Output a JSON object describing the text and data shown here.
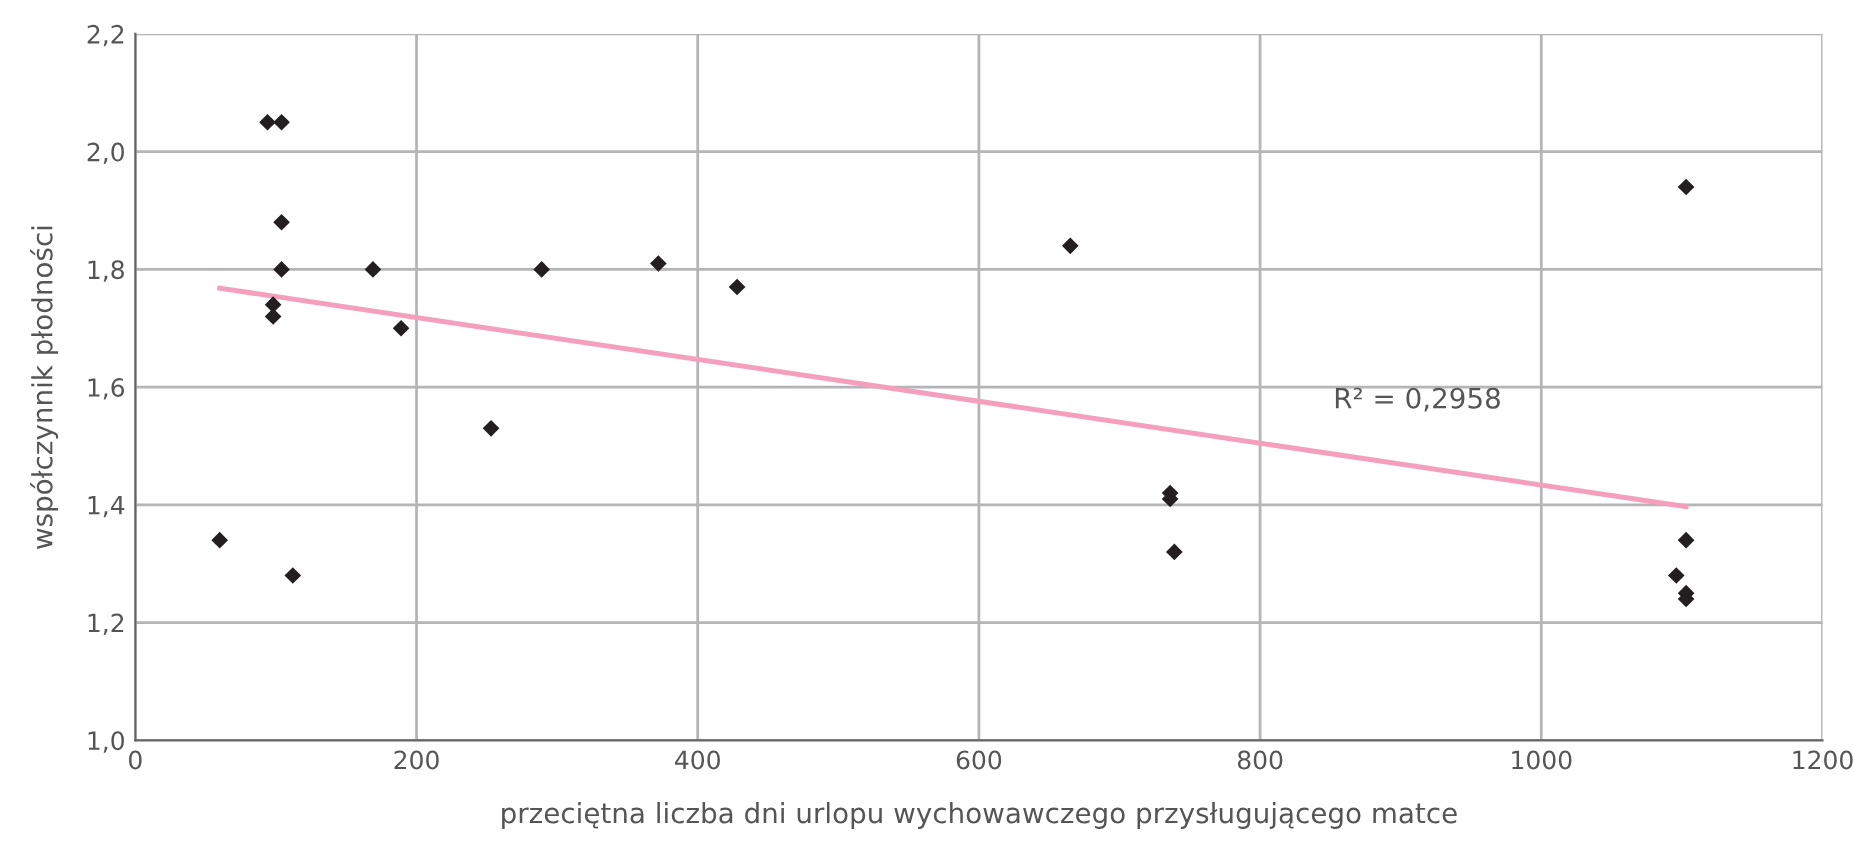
{
  "chart_data": {
    "type": "scatter",
    "xlabel": "przeciętna liczba dni urlopu wychowawczego przysługującego matce",
    "ylabel": "współczynnik płodności",
    "series": [
      {
        "color": "#231f20",
        "marker": "diamond",
        "x": [
          94,
          104,
          104,
          104,
          98,
          98,
          169,
          189,
          253,
          60,
          112,
          289,
          372,
          428,
          665,
          736,
          736,
          739,
          1103,
          1103,
          1096,
          1103,
          1103
        ],
        "values": [
          2.05,
          2.05,
          1.88,
          1.8,
          1.74,
          1.72,
          1.8,
          1.7,
          1.53,
          1.34,
          1.28,
          1.8,
          1.81,
          1.77,
          1.84,
          1.42,
          1.41,
          1.32,
          1.94,
          1.34,
          1.28,
          1.25,
          1.24
        ]
      },
      {
        "type": "line",
        "color": "#f4a0bc",
        "marker": "none",
        "x": [
          60,
          1103
        ],
        "values": [
          1.768,
          1.397
        ]
      }
    ],
    "annotations": [
      "R² = 0,2958"
    ],
    "xlim": [
      0,
      1200
    ],
    "xticks": [
      0,
      200,
      400,
      600,
      800,
      1000,
      1200
    ],
    "ylim": [
      1.0,
      2.2
    ],
    "yticks": [
      {
        "value": 1.0,
        "label": "1,0"
      },
      {
        "value": 1.2,
        "label": "1,2"
      },
      {
        "value": 1.4,
        "label": "1,4"
      },
      {
        "value": 1.6,
        "label": "1,6"
      },
      {
        "value": 1.8,
        "label": "1,8"
      },
      {
        "value": 2.0,
        "label": "2,0"
      },
      {
        "value": 2.2,
        "label": "2,2"
      }
    ],
    "grid": true
  }
}
